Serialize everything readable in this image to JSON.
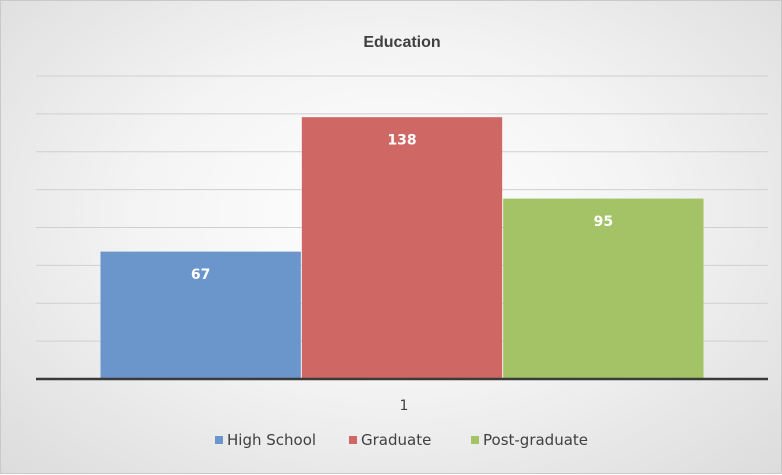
{
  "chart_data": {
    "type": "bar",
    "title": "Education",
    "categories": [
      "1"
    ],
    "series": [
      {
        "name": "High School",
        "values": [
          67
        ],
        "color": "#6a96cc"
      },
      {
        "name": "Graduate",
        "values": [
          138
        ],
        "color": "#cf6865"
      },
      {
        "name": "Post-graduate",
        "values": [
          95
        ],
        "color": "#a4c266"
      }
    ],
    "xlabel": "",
    "ylabel": "",
    "ylim": [
      0,
      160
    ],
    "ytick_step": 20,
    "show_y_tick_labels": false,
    "grid": true,
    "legend_position": "bottom",
    "data_labels": "inside-top"
  }
}
